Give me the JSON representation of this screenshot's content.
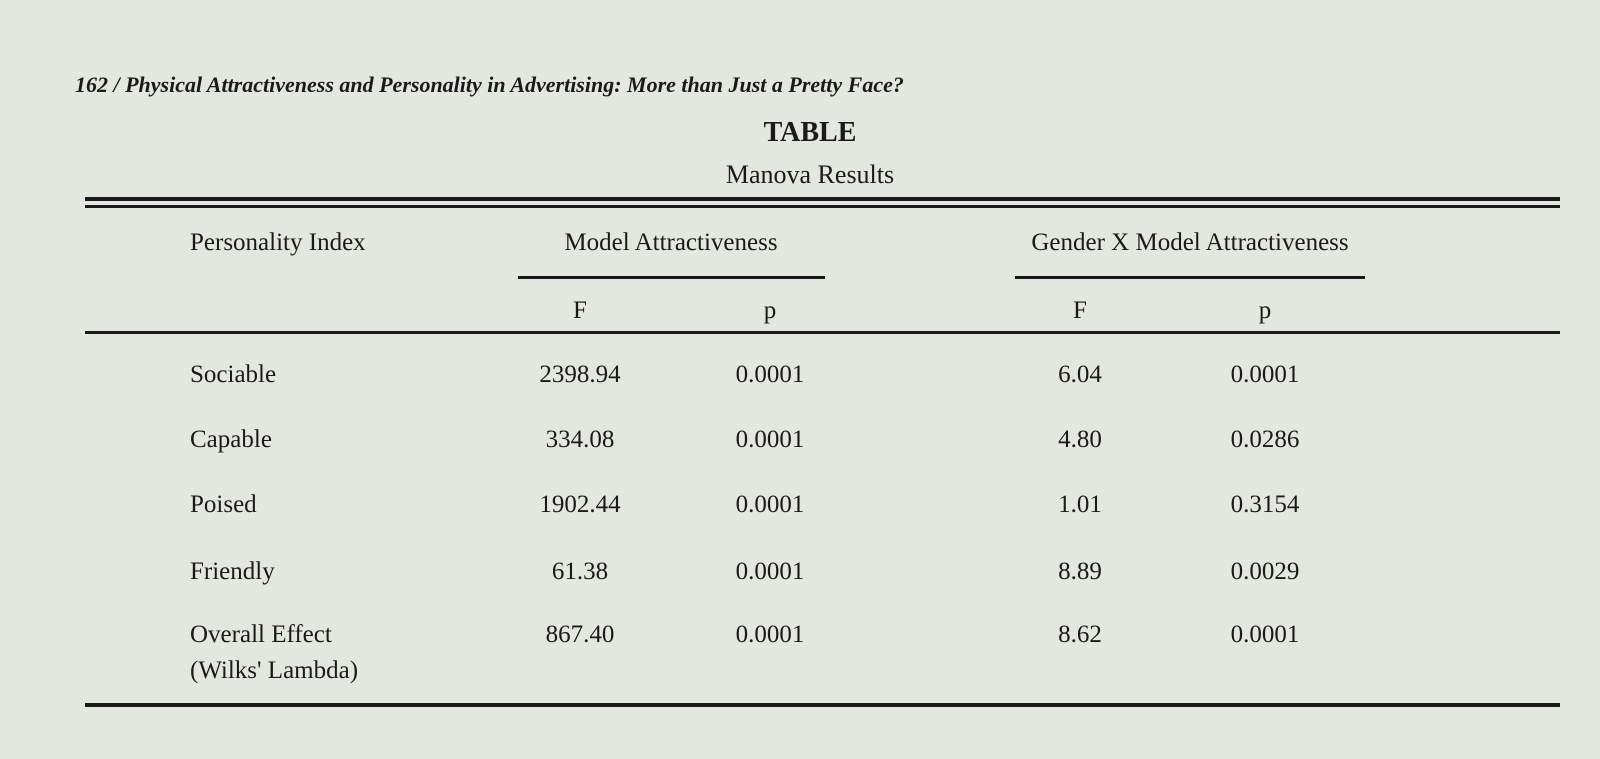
{
  "header": {
    "running_title": "162 / Physical Attractiveness and Personality in Advertising: More than Just a Pretty Face?"
  },
  "table": {
    "title": "TABLE",
    "subtitle": "Manova Results",
    "row_header": "Personality Index",
    "groups": [
      {
        "name": "Model Attractiveness",
        "columns": [
          "F",
          "p"
        ]
      },
      {
        "name": "Gender X Model Attractiveness",
        "columns": [
          "F",
          "p"
        ]
      }
    ],
    "rows": [
      {
        "label": "Sociable",
        "values": [
          "2398.94",
          "0.0001",
          "6.04",
          "0.0001"
        ]
      },
      {
        "label": "Capable",
        "values": [
          "334.08",
          "0.0001",
          "4.80",
          "0.0286"
        ]
      },
      {
        "label": "Poised",
        "values": [
          "1902.44",
          "0.0001",
          "1.01",
          "0.3154"
        ]
      },
      {
        "label": "Friendly",
        "values": [
          "61.38",
          "0.0001",
          "8.89",
          "0.0029"
        ]
      },
      {
        "label": "Overall Effect",
        "sublabel": "(Wilks' Lambda)",
        "values": [
          "867.40",
          "0.0001",
          "8.62",
          "0.0001"
        ]
      }
    ]
  }
}
